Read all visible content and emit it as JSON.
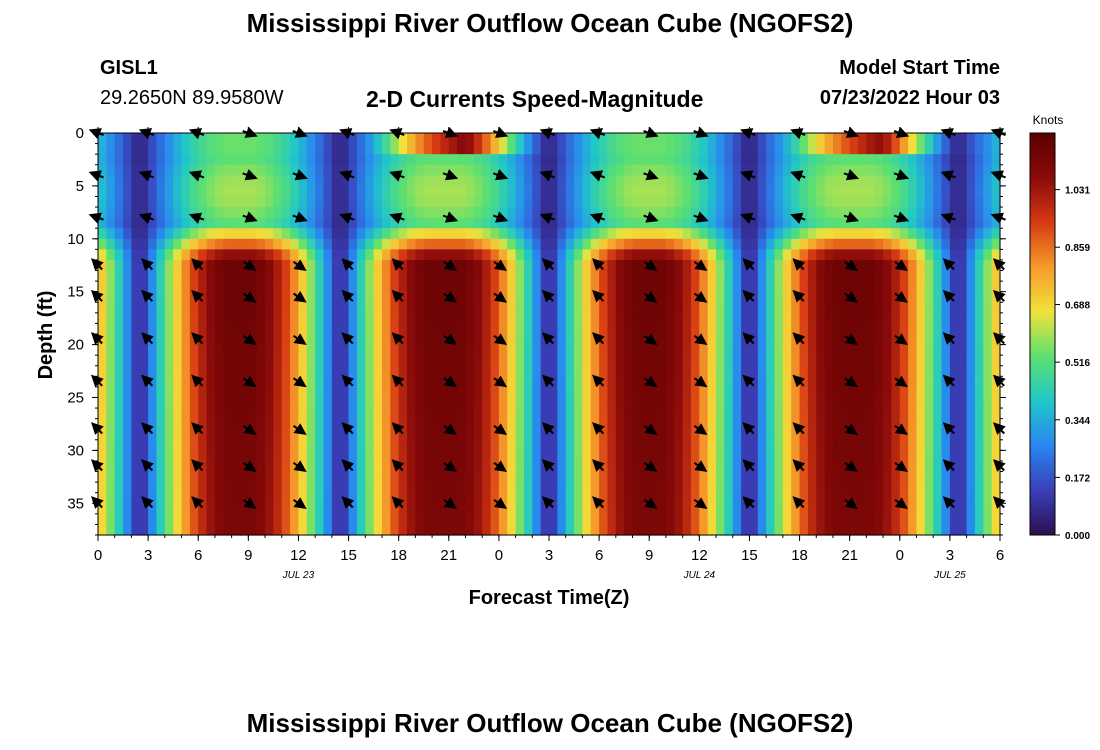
{
  "header": {
    "title": "Mississippi River Outflow Ocean Cube (NGOFS2)",
    "station_id": "GISL1",
    "station_coords": "29.2650N  89.9580W",
    "plot_subtitle": "2-D Currents Speed-Magnitude",
    "model_start_label": "Model Start Time",
    "model_start_value": "07/23/2022 Hour 03"
  },
  "footer": {
    "title_repeat": "Mississippi River Outflow Ocean Cube (NGOFS2)"
  },
  "chart_data": {
    "type": "heatmap",
    "xlabel": "Forecast Time(Z)",
    "ylabel": "Depth (ft)",
    "x_range_hours": [
      0,
      54
    ],
    "ylim": [
      38,
      0
    ],
    "x_ticks": [
      {
        "hour": 0,
        "label": "0"
      },
      {
        "hour": 3,
        "label": "3"
      },
      {
        "hour": 6,
        "label": "6"
      },
      {
        "hour": 9,
        "label": "9"
      },
      {
        "hour": 12,
        "label": "12"
      },
      {
        "hour": 15,
        "label": "15"
      },
      {
        "hour": 18,
        "label": "18"
      },
      {
        "hour": 21,
        "label": "21"
      },
      {
        "hour": 24,
        "label": "0"
      },
      {
        "hour": 27,
        "label": "3"
      },
      {
        "hour": 30,
        "label": "6"
      },
      {
        "hour": 33,
        "label": "9"
      },
      {
        "hour": 36,
        "label": "12"
      },
      {
        "hour": 39,
        "label": "15"
      },
      {
        "hour": 42,
        "label": "18"
      },
      {
        "hour": 45,
        "label": "21"
      },
      {
        "hour": 48,
        "label": "0"
      },
      {
        "hour": 51,
        "label": "3"
      },
      {
        "hour": 54,
        "label": "6"
      }
    ],
    "date_labels": [
      {
        "hour": 12,
        "label": "JUL 23"
      },
      {
        "hour": 36,
        "label": "JUL 24"
      },
      {
        "hour": 51,
        "label": "JUL 25"
      }
    ],
    "y_ticks": [
      0,
      5,
      10,
      15,
      20,
      25,
      30,
      35
    ],
    "colorbar": {
      "unit_label": "Knots",
      "ticks": [
        "0.000",
        "0.172",
        "0.344",
        "0.516",
        "0.688",
        "0.859",
        "1.031"
      ],
      "range": [
        0,
        1.2
      ],
      "colors": [
        "#2b0f4f",
        "#3a3fb8",
        "#2a86f0",
        "#20c8c8",
        "#5de070",
        "#f2e23b",
        "#f59a2a",
        "#d63a12",
        "#8a0a0a",
        "#5c0000"
      ]
    },
    "speed_field_description_values": {
      "low_speed_hours": [
        2.5,
        14.5,
        27,
        39,
        51.5
      ],
      "high_speed_peak_hours": [
        9,
        21.5,
        33.5,
        46
      ],
      "surface_max_hours": [
        22,
        47
      ],
      "max_speed_knots": 1.15,
      "min_speed_knots": 0.05
    },
    "arrow_times_hours": [
      0,
      3,
      6,
      9,
      12,
      15,
      18,
      21,
      24,
      27,
      30,
      33,
      36,
      39,
      42,
      45,
      48,
      51,
      54
    ],
    "arrow_depths_ft": [
      0,
      4,
      8,
      12.5,
      15.5,
      19.5,
      23.5,
      28,
      31.5,
      35
    ]
  }
}
